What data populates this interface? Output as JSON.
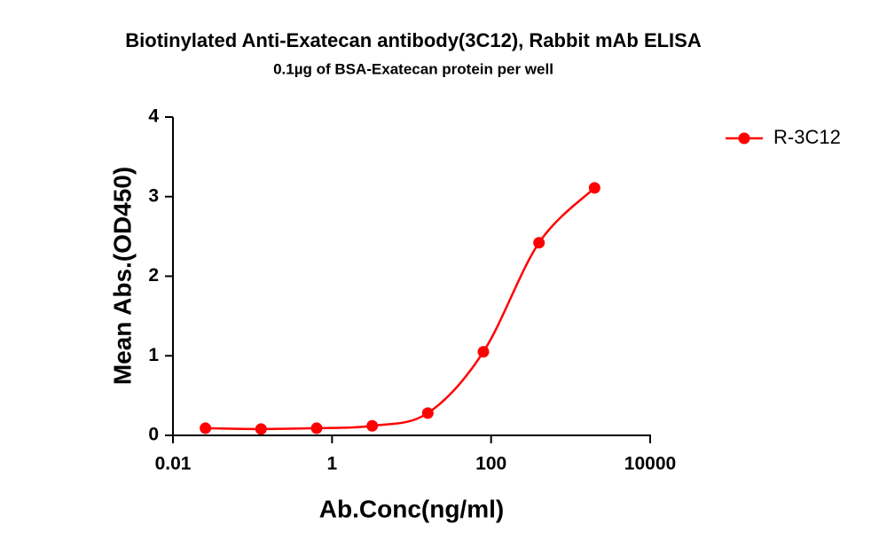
{
  "chart_data": {
    "type": "line",
    "title": "Biotinylated Anti-Exatecan antibody(3C12), Rabbit mAb ELISA",
    "subtitle": "0.1µg of BSA-Exatecan protein per well",
    "x_label": "Ab.Conc(ng/ml)",
    "y_label": "Mean Abs.(OD450)",
    "x": [
      0.0256,
      0.128,
      0.64,
      3.2,
      16,
      80,
      400,
      2000
    ],
    "series": [
      {
        "name": "R-3C12",
        "color": "#ff0000",
        "values": [
          0.09,
          0.08,
          0.09,
          0.12,
          0.28,
          1.05,
          2.42,
          3.11
        ]
      }
    ],
    "xlim": [
      0.01,
      10000
    ],
    "xticks": [
      0.01,
      1,
      100,
      10000
    ],
    "x_scale": "log",
    "ylim": [
      0,
      4
    ],
    "yticks": [
      0,
      1,
      2,
      3,
      4
    ],
    "legend": "top-right"
  }
}
